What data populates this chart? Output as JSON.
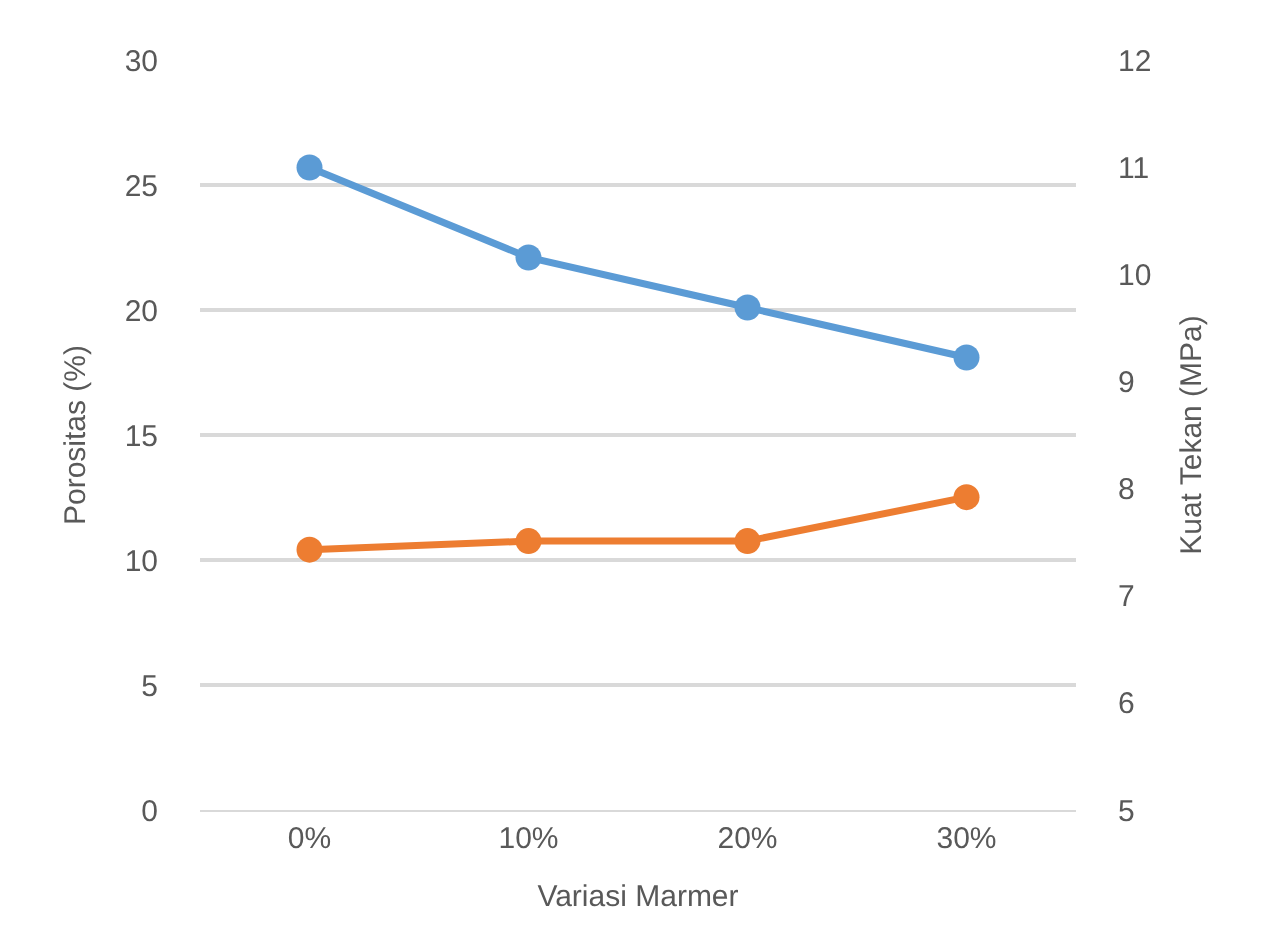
{
  "chart_data": {
    "type": "line",
    "xlabel": "Variasi Marmer",
    "ylabel": "Porositas (%)",
    "y2label": "Kuat Tekan (MPa)",
    "categories": [
      "0%",
      "10%",
      "20%",
      "30%"
    ],
    "series": [
      {
        "color": "#5b9bd5",
        "values": [
          25.7,
          22.1,
          20.1,
          18.1
        ]
      },
      {
        "color": "#ed7d31",
        "values": [
          7.43,
          7.51,
          7.51,
          7.92
        ],
        "axis": "y2"
      }
    ],
    "ylim": [
      0,
      30
    ],
    "yticks": [
      0,
      5,
      10,
      15,
      20,
      25,
      30
    ],
    "y2lim": [
      5,
      12
    ],
    "y2ticks": [
      5,
      6,
      7,
      8,
      9,
      10,
      11,
      12
    ],
    "grid": "y",
    "legend": false,
    "marker": "circle",
    "line_style": "solid"
  }
}
